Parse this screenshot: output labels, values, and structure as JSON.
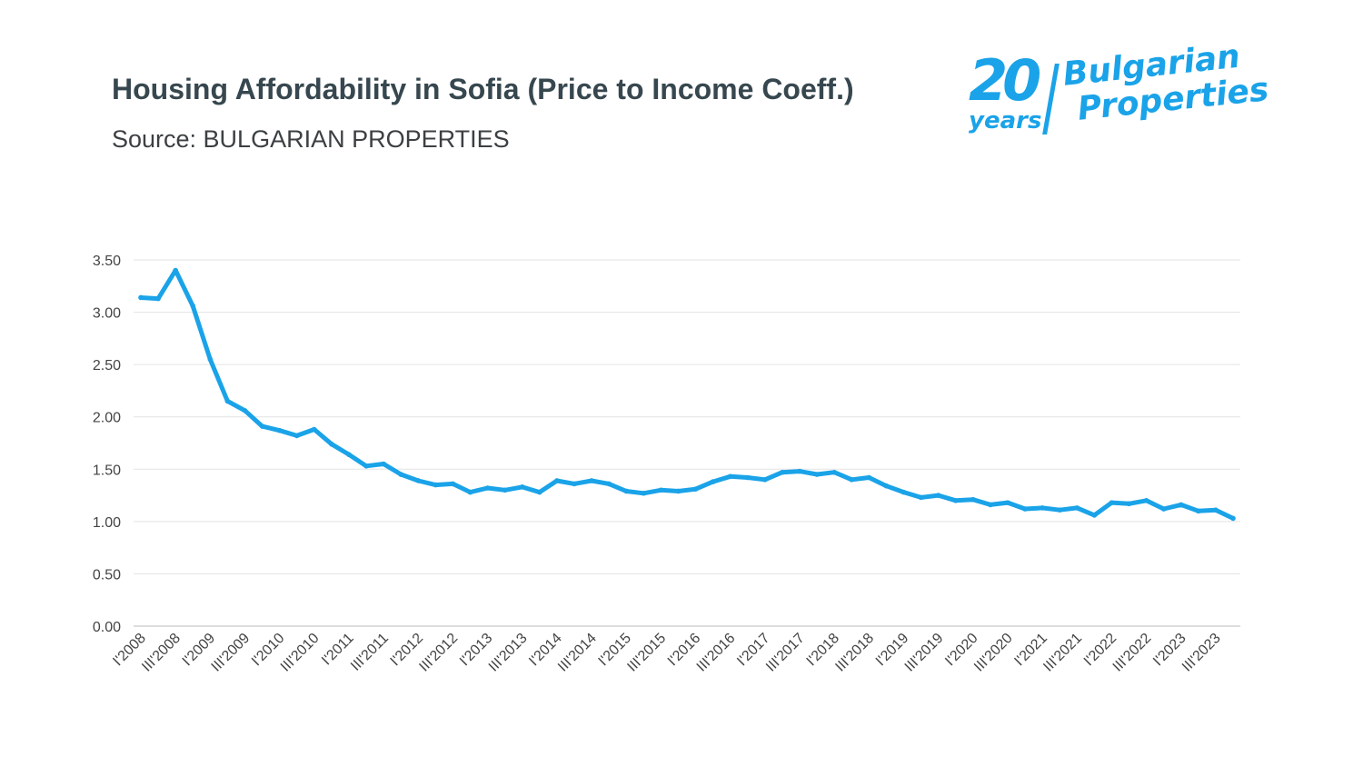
{
  "header": {
    "title": "Housing Affordability in Sofia (Price to Income Coeff.)",
    "subtitle": "Source: BULGARIAN PROPERTIES"
  },
  "logo": {
    "number": "20",
    "years": "years",
    "brand_line1": "Bulgarian",
    "brand_line2": "Properties",
    "color": "#1aa3e8"
  },
  "chart_data": {
    "type": "line",
    "title": "Housing Affordability in Sofia (Price to Income Coeff.)",
    "xlabel": "",
    "ylabel": "",
    "ylim": [
      0,
      3.5
    ],
    "y_ticks": [
      "0.00",
      "0.50",
      "1.00",
      "1.50",
      "2.00",
      "2.50",
      "3.00",
      "3.50"
    ],
    "grid": true,
    "line_color": "#1aa3e8",
    "x_tick_labels": [
      "I'2008",
      "III'2008",
      "I'2009",
      "III'2009",
      "I'2010",
      "III'2010",
      "I'2011",
      "III'2011",
      "I'2012",
      "III'2012",
      "I'2013",
      "III'2013",
      "I'2014",
      "III'2014",
      "I'2015",
      "III'2015",
      "I'2016",
      "III'2016",
      "I'2017",
      "III'2017",
      "I'2018",
      "III'2018",
      "I'2019",
      "III'2019",
      "I'2020",
      "III'2020",
      "I'2021",
      "III'2021",
      "I'2022",
      "III'2022",
      "I'2023",
      "III'2023"
    ],
    "series": [
      {
        "values": [
          3.14,
          3.13,
          3.4,
          3.06,
          2.55,
          2.15,
          2.06,
          1.91,
          1.87,
          1.82,
          1.88,
          1.74,
          1.64,
          1.53,
          1.55,
          1.45,
          1.39,
          1.35,
          1.36,
          1.28,
          1.32,
          1.3,
          1.33,
          1.28,
          1.39,
          1.36,
          1.39,
          1.36,
          1.29,
          1.27,
          1.3,
          1.29,
          1.31,
          1.38,
          1.43,
          1.42,
          1.4,
          1.47,
          1.48,
          1.45,
          1.47,
          1.4,
          1.42,
          1.34,
          1.28,
          1.23,
          1.25,
          1.2,
          1.21,
          1.16,
          1.18,
          1.12,
          1.13,
          1.11,
          1.13,
          1.06,
          1.18,
          1.17,
          1.2,
          1.12,
          1.16,
          1.1,
          1.11,
          1.03
        ]
      }
    ]
  }
}
